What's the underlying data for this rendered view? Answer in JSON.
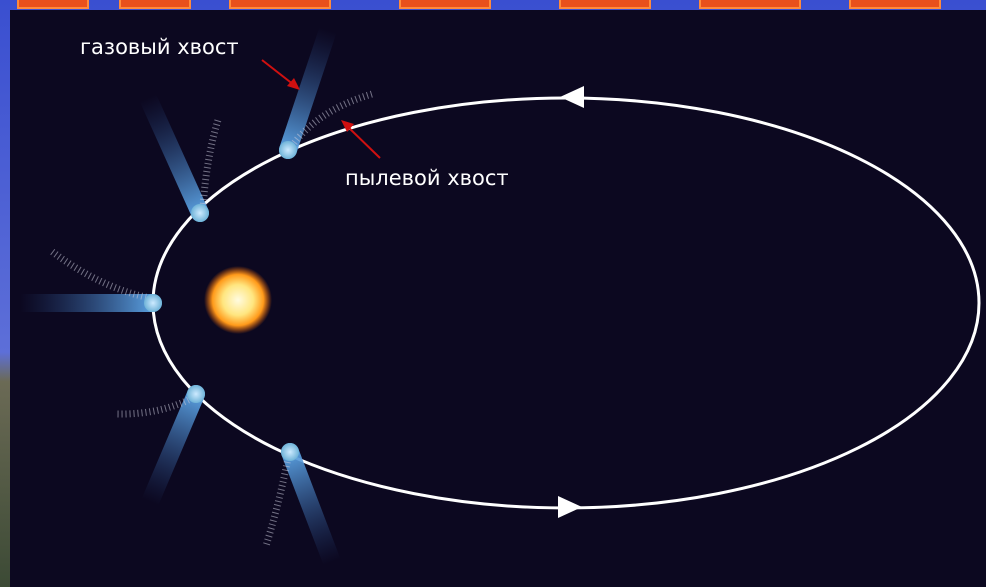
{
  "labels": {
    "gas_tail": "газовый хвост",
    "dust_tail": "пылевой хвост"
  }
}
